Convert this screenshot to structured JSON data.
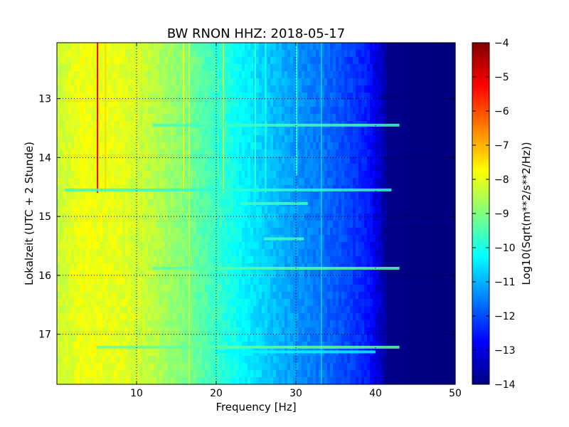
{
  "chart_data": {
    "type": "heatmap",
    "title": "BW RNON HHZ: 2018-05-17",
    "xlabel": "Frequency [Hz]",
    "ylabel": "Lokalzeit (UTC + 2 Stunde)",
    "xlim": [
      0,
      50
    ],
    "ylim": [
      12.05,
      17.85
    ],
    "y_inverted": true,
    "x_ticks": [
      10,
      20,
      30,
      40,
      50
    ],
    "x_tick_labels": [
      "10",
      "20",
      "30",
      "40",
      "50"
    ],
    "y_ticks": [
      13,
      14,
      15,
      16,
      17
    ],
    "y_tick_labels": [
      "13",
      "14",
      "15",
      "16",
      "17"
    ],
    "grid": true,
    "colormap": "jet",
    "colorbar": {
      "label": "Log10(Sqrt(m**2/s**2/Hz))",
      "range": [
        -14,
        -4
      ],
      "ticks": [
        -4,
        -5,
        -6,
        -7,
        -8,
        -9,
        -10,
        -11,
        -12,
        -13,
        -14
      ],
      "tick_labels": [
        "−4",
        "−5",
        "−6",
        "−7",
        "−8",
        "−9",
        "−10",
        "−11",
        "−12",
        "−13",
        "−14"
      ]
    },
    "spectral_profile": [
      {
        "freq": 0,
        "value": -8.3
      },
      {
        "freq": 3,
        "value": -7.9
      },
      {
        "freq": 8,
        "value": -8.0
      },
      {
        "freq": 12,
        "value": -8.4
      },
      {
        "freq": 16,
        "value": -9.0
      },
      {
        "freq": 20,
        "value": -9.7
      },
      {
        "freq": 24,
        "value": -10.4
      },
      {
        "freq": 28,
        "value": -11.0
      },
      {
        "freq": 32,
        "value": -11.5
      },
      {
        "freq": 36,
        "value": -12.0
      },
      {
        "freq": 39,
        "value": -12.5
      },
      {
        "freq": 40.5,
        "value": -13.2
      },
      {
        "freq": 41.5,
        "value": -13.9
      },
      {
        "freq": 50,
        "value": -14.0
      }
    ],
    "vertical_lines": [
      {
        "freq": 5.1,
        "t_start": 12.05,
        "t_end": 14.6,
        "value": -5.2
      },
      {
        "freq": 6.1,
        "t_start": 12.05,
        "t_end": 14.6,
        "value": -7.4
      },
      {
        "freq": 15.9,
        "t_start": 12.05,
        "t_end": 14.6,
        "value": -7.8
      },
      {
        "freq": 16.6,
        "t_start": 12.05,
        "t_end": 17.85,
        "value": -8.3
      },
      {
        "freq": 20.9,
        "t_start": 12.05,
        "t_end": 14.6,
        "value": -8.4
      },
      {
        "freq": 24.9,
        "t_start": 12.05,
        "t_end": 14.6,
        "value": -9.8
      },
      {
        "freq": 26.2,
        "t_start": 12.05,
        "t_end": 14.6,
        "value": -10.0
      },
      {
        "freq": 30.1,
        "t_start": 12.05,
        "t_end": 14.3,
        "value": -9.9
      },
      {
        "freq": 33.2,
        "t_start": 12.05,
        "t_end": 17.85,
        "value": -10.8
      }
    ],
    "horizontal_bands": [
      {
        "time": 13.45,
        "f_start": 12,
        "f_end": 43,
        "value": -9.6
      },
      {
        "time": 14.55,
        "f_start": 1,
        "f_end": 42,
        "value": -9.8
      },
      {
        "time": 14.78,
        "f_start": 23,
        "f_end": 31.5,
        "value": -9.6
      },
      {
        "time": 15.38,
        "f_start": 26,
        "f_end": 31,
        "value": -9.6
      },
      {
        "time": 15.88,
        "f_start": 12,
        "f_end": 43,
        "value": -9.4
      },
      {
        "time": 17.22,
        "f_start": 5,
        "f_end": 43,
        "value": -9.3
      },
      {
        "time": 17.3,
        "f_start": 20,
        "f_end": 40,
        "value": -10.3
      }
    ]
  }
}
